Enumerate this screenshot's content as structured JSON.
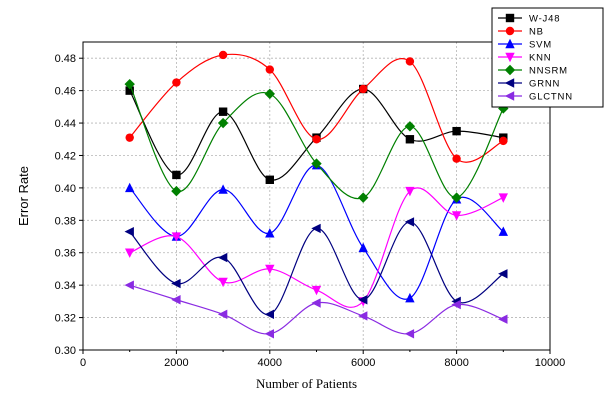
{
  "chart_data": {
    "type": "line",
    "xlabel": "Number of Patients",
    "ylabel": "Error Rate",
    "xlim": [
      0,
      10000
    ],
    "ylim": [
      0.3,
      0.49
    ],
    "x_ticks": [
      "0",
      "2000",
      "4000",
      "6000",
      "8000",
      "10000"
    ],
    "y_ticks": [
      "0.30",
      "0.32",
      "0.34",
      "0.36",
      "0.38",
      "0.40",
      "0.42",
      "0.44",
      "0.46",
      "0.48"
    ],
    "grid": true,
    "smoothed": true,
    "legend_position": "top-right",
    "x": [
      1000,
      2000,
      3000,
      4000,
      5000,
      6000,
      7000,
      8000,
      9000
    ],
    "series": [
      {
        "name": "W-J48",
        "color": "#000000",
        "marker": "square",
        "values": [
          0.46,
          0.408,
          0.447,
          0.405,
          0.431,
          0.461,
          0.43,
          0.435,
          0.431
        ]
      },
      {
        "name": "NB",
        "color": "#ff0000",
        "marker": "circle",
        "values": [
          0.431,
          0.465,
          0.482,
          0.473,
          0.43,
          0.461,
          0.478,
          0.418,
          0.429
        ]
      },
      {
        "name": "SVM",
        "color": "#0000ff",
        "marker": "triangle-up",
        "values": [
          0.4,
          0.37,
          0.399,
          0.372,
          0.414,
          0.363,
          0.332,
          0.393,
          0.373
        ]
      },
      {
        "name": "KNN",
        "color": "#ff00ff",
        "marker": "triangle-down",
        "values": [
          0.36,
          0.37,
          0.342,
          0.35,
          0.337,
          0.33,
          0.398,
          0.383,
          0.394
        ]
      },
      {
        "name": "NNSRM",
        "color": "#008000",
        "marker": "diamond",
        "values": [
          0.464,
          0.398,
          0.44,
          0.458,
          0.415,
          0.394,
          0.438,
          0.394,
          0.449
        ]
      },
      {
        "name": "GRNN",
        "color": "#000080",
        "marker": "triangle-left",
        "values": [
          0.373,
          0.341,
          0.357,
          0.322,
          0.375,
          0.331,
          0.379,
          0.33,
          0.347
        ]
      },
      {
        "name": "GLCTNN",
        "color": "#8a2be2",
        "marker": "triangle-left",
        "values": [
          0.34,
          0.331,
          0.322,
          0.31,
          0.329,
          0.321,
          0.31,
          0.328,
          0.319
        ]
      }
    ]
  }
}
